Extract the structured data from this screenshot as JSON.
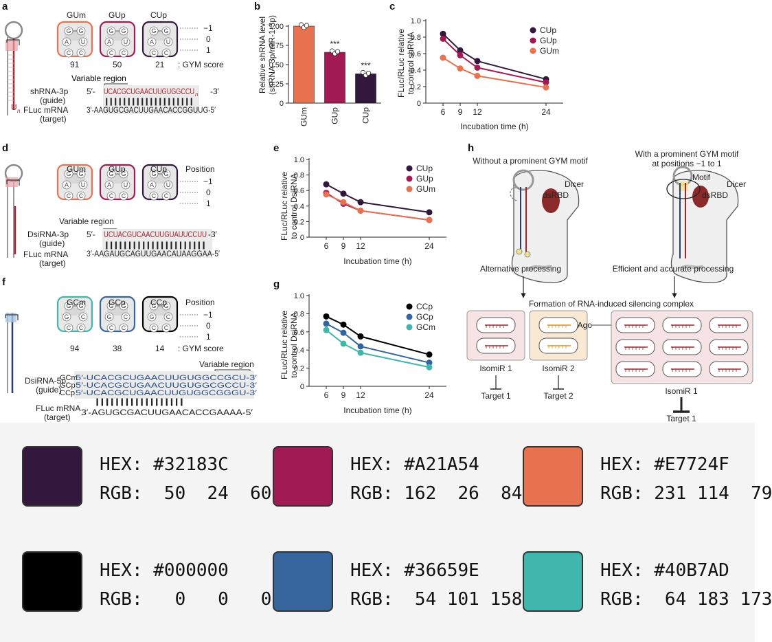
{
  "panel_labels": [
    "a",
    "b",
    "c",
    "d",
    "e",
    "f",
    "g",
    "h"
  ],
  "panel_a": {
    "loops": [
      "GUm",
      "GUp",
      "CUp"
    ],
    "loop_letters": [
      [
        "G",
        "G",
        "A",
        "U",
        "C",
        "C"
      ],
      [
        "G",
        "G",
        "A",
        "U",
        "C",
        "C"
      ],
      [
        "G",
        "G",
        "A",
        "U",
        "C",
        "C"
      ]
    ],
    "positions": [
      "−1",
      "0",
      "1"
    ],
    "scores": [
      "91",
      "50",
      "21"
    ],
    "score_label": ": GYM score",
    "variable_region": "Variable region",
    "guide_name": "shRNA-3p",
    "guide_sub": "(guide)",
    "target_name": "FLuc mRNA",
    "target_sub": "(target)",
    "p5": "5′-",
    "p3": "-3′",
    "guide_seq": "UCACGCUGAACUUGUGGCCU",
    "guide_tail": "n",
    "pairs": "||||||||||||||||||||",
    "target_seq": "3′-AAGUGCGACUUGAACACCGGUUG-5′",
    "tail_label": "U",
    "tail_sub": "n"
  },
  "panel_d": {
    "loops": [
      "GUm",
      "GUp",
      "CUp"
    ],
    "position_header": "Position",
    "positions": [
      "−1",
      "0",
      "1"
    ],
    "variable_region": "Variable region",
    "guide_name": "DsiRNA-3p",
    "guide_sub": "(guide)",
    "target_name": "FLuc mRNA",
    "target_sub": "(target)",
    "p5": "5′-",
    "p3": "-3′",
    "guide_seq": "UCUACGUCAACUUGUAUUCCUU",
    "pairs": "||||||||||||||||||||||",
    "target_seq": "3′-AAGAUGCAGUUGAACAUAAGGAA-5′"
  },
  "panel_f": {
    "loops": [
      "GCm",
      "GCp",
      "CCp"
    ],
    "loop_letters": [
      [
        "G",
        "G",
        "G",
        "C",
        "C",
        "C"
      ],
      [
        "G",
        "G",
        "G",
        "C",
        "C",
        "C"
      ],
      [
        "G",
        "G",
        "G",
        "C",
        "C",
        "C"
      ]
    ],
    "position_header": "Position",
    "positions": [
      "−1",
      "0",
      "1"
    ],
    "scores": [
      "94",
      "38",
      "14"
    ],
    "score_label": ": GYM score",
    "variable_region": "Variable region",
    "guide_name": "DsiRNA-5p",
    "guide_sub": "(guide)",
    "target_name": "FLuc mRNA",
    "target_sub": "(target)",
    "rows": [
      {
        "tag": "GCm",
        "seq": "5′-UCACGCUGAACUUGUGGCCGCU-3′"
      },
      {
        "tag": "GCp",
        "seq": "5′-UCACGCUGAACUUGUGGCGCCU-3′"
      },
      {
        "tag": "CCp",
        "seq": "5′-UCACGCUGAACUUGUGGCGGGU-3′"
      }
    ],
    "pairs": "||||||||||||||||||",
    "target_seq": "3′-AGUGCGACUUGAACACCGAAAA-5′"
  },
  "panel_h": {
    "left_title": "Without a prominent GYM motif",
    "right_title_1": "With a prominent GYM motif",
    "right_title_2": "at positions −1 to 1",
    "dicer": "Dicer",
    "dsrbd": "dsRBD",
    "motif": "Motif",
    "alt_processing": "Alternative processing",
    "eff_processing": "Efficient and accurate processing",
    "risc": "Formation of RNA-induced silencing complex",
    "ago": "Ago",
    "isomir1": "IsomiR 1",
    "isomir2": "IsomiR 2",
    "isomir1b": "IsomiR 1",
    "target1": "Target 1",
    "target2": "Target 2",
    "target1b": "Target 1"
  },
  "chart_data": [
    {
      "id": "b",
      "type": "bar",
      "categories": [
        "GUm",
        "GUp",
        "CUp"
      ],
      "values": [
        1.0,
        0.66,
        0.38
      ],
      "colors": [
        "#E7724F",
        "#A21A54",
        "#32183C"
      ],
      "significance": [
        "",
        "***",
        "***"
      ],
      "ylabel_1": "Relative shRNA level",
      "ylabel_2": "(shRNA-3p/miR-1-3p)",
      "ylim": [
        0,
        1.0
      ],
      "yticks": [
        "0",
        "0.25",
        "0.50",
        "0.75",
        "1.00"
      ]
    },
    {
      "id": "c",
      "type": "line",
      "x": [
        6,
        9,
        12,
        24
      ],
      "series": [
        {
          "name": "CUp",
          "color": "#32183C",
          "values": [
            0.84,
            0.64,
            0.51,
            0.29
          ]
        },
        {
          "name": "GUp",
          "color": "#A21A54",
          "values": [
            0.78,
            0.58,
            0.43,
            0.25
          ]
        },
        {
          "name": "GUm",
          "color": "#E7724F",
          "values": [
            0.55,
            0.42,
            0.33,
            0.19
          ]
        }
      ],
      "ylabel_1": "FLuc/RLuc relative",
      "ylabel_2": "to control shRNA",
      "xlabel": "Incubation time (h)",
      "ylim": [
        0,
        1.0
      ],
      "yticks": [
        "0",
        "0.2",
        "0.4",
        "0.6",
        "0.8",
        "1.0"
      ],
      "xticks": [
        "6",
        "9",
        "12",
        "24"
      ]
    },
    {
      "id": "e",
      "type": "line",
      "x": [
        6,
        9,
        12,
        24
      ],
      "series": [
        {
          "name": "CUp",
          "color": "#32183C",
          "values": [
            0.68,
            0.56,
            0.45,
            0.32
          ]
        },
        {
          "name": "GUp",
          "color": "#A21A54",
          "values": [
            0.57,
            0.43,
            0.34,
            0.22
          ]
        },
        {
          "name": "GUm",
          "color": "#E7724F",
          "values": [
            0.55,
            0.45,
            0.34,
            0.22
          ]
        }
      ],
      "ylabel_1": "FLuc/RLuc relative",
      "ylabel_2": "to control DsiRNA",
      "xlabel": "Incubation time (h)",
      "ylim": [
        0,
        1.0
      ],
      "yticks": [
        "0",
        "0.2",
        "0.4",
        "0.6",
        "0.8",
        "1.0"
      ],
      "xticks": [
        "6",
        "9",
        "12",
        "24"
      ]
    },
    {
      "id": "g",
      "type": "line",
      "x": [
        6,
        9,
        12,
        24
      ],
      "series": [
        {
          "name": "CCp",
          "color": "#000000",
          "values": [
            0.77,
            0.68,
            0.55,
            0.35
          ]
        },
        {
          "name": "GCp",
          "color": "#36659E",
          "values": [
            0.69,
            0.59,
            0.44,
            0.26
          ]
        },
        {
          "name": "GCm",
          "color": "#40B7AD",
          "values": [
            0.62,
            0.47,
            0.37,
            0.21
          ]
        }
      ],
      "ylabel_1": "FLuc/RLuc relative",
      "ylabel_2": "to control DsiRNA",
      "xlabel": "Incubation time (h)",
      "ylim": [
        0,
        1.0
      ],
      "yticks": [
        "0",
        "0.2",
        "0.4",
        "0.6",
        "0.8",
        "1.0"
      ],
      "xticks": [
        "6",
        "9",
        "12",
        "24"
      ]
    }
  ],
  "palette": [
    {
      "hex": "HEX: #32183C",
      "rgb": "RGB:  50  24  60",
      "color": "#32183C"
    },
    {
      "hex": "HEX: #A21A54",
      "rgb": "RGB: 162  26  84",
      "color": "#A21A54"
    },
    {
      "hex": "HEX: #E7724F",
      "rgb": "RGB: 231 114  79",
      "color": "#E7724F"
    },
    {
      "hex": "HEX: #000000",
      "rgb": "RGB:   0   0   0",
      "color": "#000000"
    },
    {
      "hex": "HEX: #36659E",
      "rgb": "RGB:  54 101 158",
      "color": "#36659E"
    },
    {
      "hex": "HEX: #40B7AD",
      "rgb": "RGB:  64 183 173",
      "color": "#40B7AD"
    }
  ]
}
